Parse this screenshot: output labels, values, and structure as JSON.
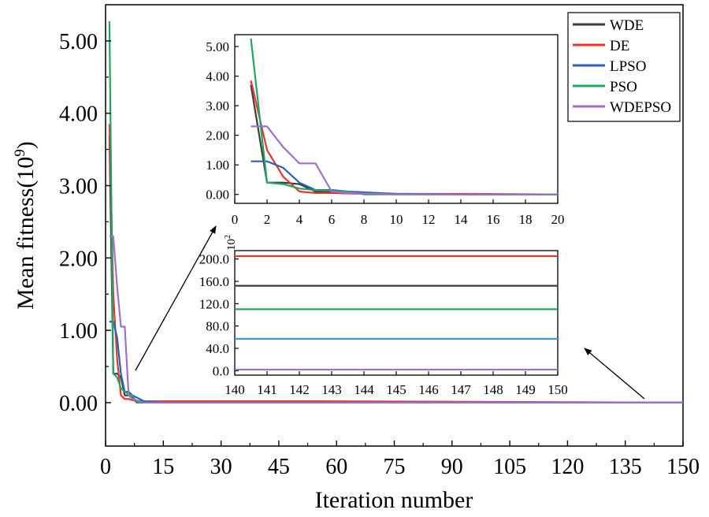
{
  "chart_data": {
    "type": "line",
    "xlabel": "Iteration number",
    "ylabel_base": "Mean fitness(10",
    "ylabel_exp": "9",
    "ylabel_close": ")",
    "xlim": [
      0,
      150
    ],
    "ylim": [
      -0.6,
      5.5
    ],
    "xticks": [
      "0",
      "15",
      "30",
      "45",
      "60",
      "75",
      "90",
      "105",
      "120",
      "135",
      "150"
    ],
    "yticks": [
      "0.00",
      "1.00",
      "2.00",
      "3.00",
      "4.00",
      "5.00"
    ],
    "legend": [
      "WDE",
      "DE",
      "LPSO",
      "PSO",
      "WDEPSO"
    ],
    "legend_position": "top-right",
    "colors": {
      "WDE": "#3d3d3d",
      "DE": "#e8342c",
      "LPSO": "#2465b5",
      "PSO": "#20a664",
      "WDEPSO": "#9e6fcd"
    },
    "series": [
      {
        "name": "WDE",
        "x": [
          1,
          2,
          3,
          4,
          5,
          6,
          8,
          10,
          15,
          150
        ],
        "y": [
          3.7,
          0.4,
          0.4,
          0.35,
          0.1,
          0.1,
          0.03,
          0.01,
          0.0,
          0.0
        ]
      },
      {
        "name": "DE",
        "x": [
          1,
          2,
          3,
          4,
          5,
          6,
          8,
          10,
          15,
          55,
          150
        ],
        "y": [
          3.85,
          1.5,
          0.6,
          0.1,
          0.05,
          0.05,
          0.02,
          0.02,
          0.02,
          0.02,
          0.0
        ]
      },
      {
        "name": "LPSO",
        "x": [
          1,
          2,
          3,
          4,
          5,
          6,
          7,
          10,
          15,
          150
        ],
        "y": [
          1.12,
          1.12,
          0.9,
          0.4,
          0.15,
          0.15,
          0.1,
          0.02,
          0.0,
          0.0
        ]
      },
      {
        "name": "PSO",
        "x": [
          1,
          2,
          3,
          4,
          5,
          6,
          7,
          8,
          15,
          150
        ],
        "y": [
          5.27,
          0.4,
          0.35,
          0.2,
          0.15,
          0.12,
          0.1,
          0.0,
          0.0,
          0.0
        ]
      },
      {
        "name": "WDEPSO",
        "x": [
          1,
          2,
          3,
          4,
          5,
          6,
          7,
          10,
          15,
          150
        ],
        "y": [
          2.3,
          2.3,
          1.6,
          1.05,
          1.05,
          0.1,
          0.05,
          0.0,
          0.0,
          0.0
        ]
      }
    ],
    "inset_top": {
      "xlim": [
        0,
        20
      ],
      "ylim": [
        -0.3,
        5.4
      ],
      "xticks": [
        "0",
        "2",
        "4",
        "6",
        "8",
        "10",
        "12",
        "14",
        "16",
        "18",
        "20"
      ],
      "yticks": [
        "0.00",
        "1.00",
        "2.00",
        "3.00",
        "4.00",
        "5.00"
      ]
    },
    "inset_bottom": {
      "xlim": [
        140,
        150
      ],
      "ylim": [
        -8,
        215
      ],
      "exponent_label": "10",
      "exponent_sup": "2",
      "xticks": [
        "140",
        "141",
        "142",
        "143",
        "144",
        "145",
        "146",
        "147",
        "148",
        "149",
        "150"
      ],
      "yticks": [
        "0.0",
        "40.0",
        "80.0",
        "120.0",
        "160.0",
        "200.0"
      ],
      "lines": [
        {
          "name": "DE",
          "value": 205
        },
        {
          "name": "WDE",
          "value": 152
        },
        {
          "name": "PSO",
          "value": 110
        },
        {
          "name": "LPSO",
          "value": 57,
          "color": "#2aa0d8"
        },
        {
          "name": "WDEPSO",
          "value": 2
        }
      ]
    }
  }
}
